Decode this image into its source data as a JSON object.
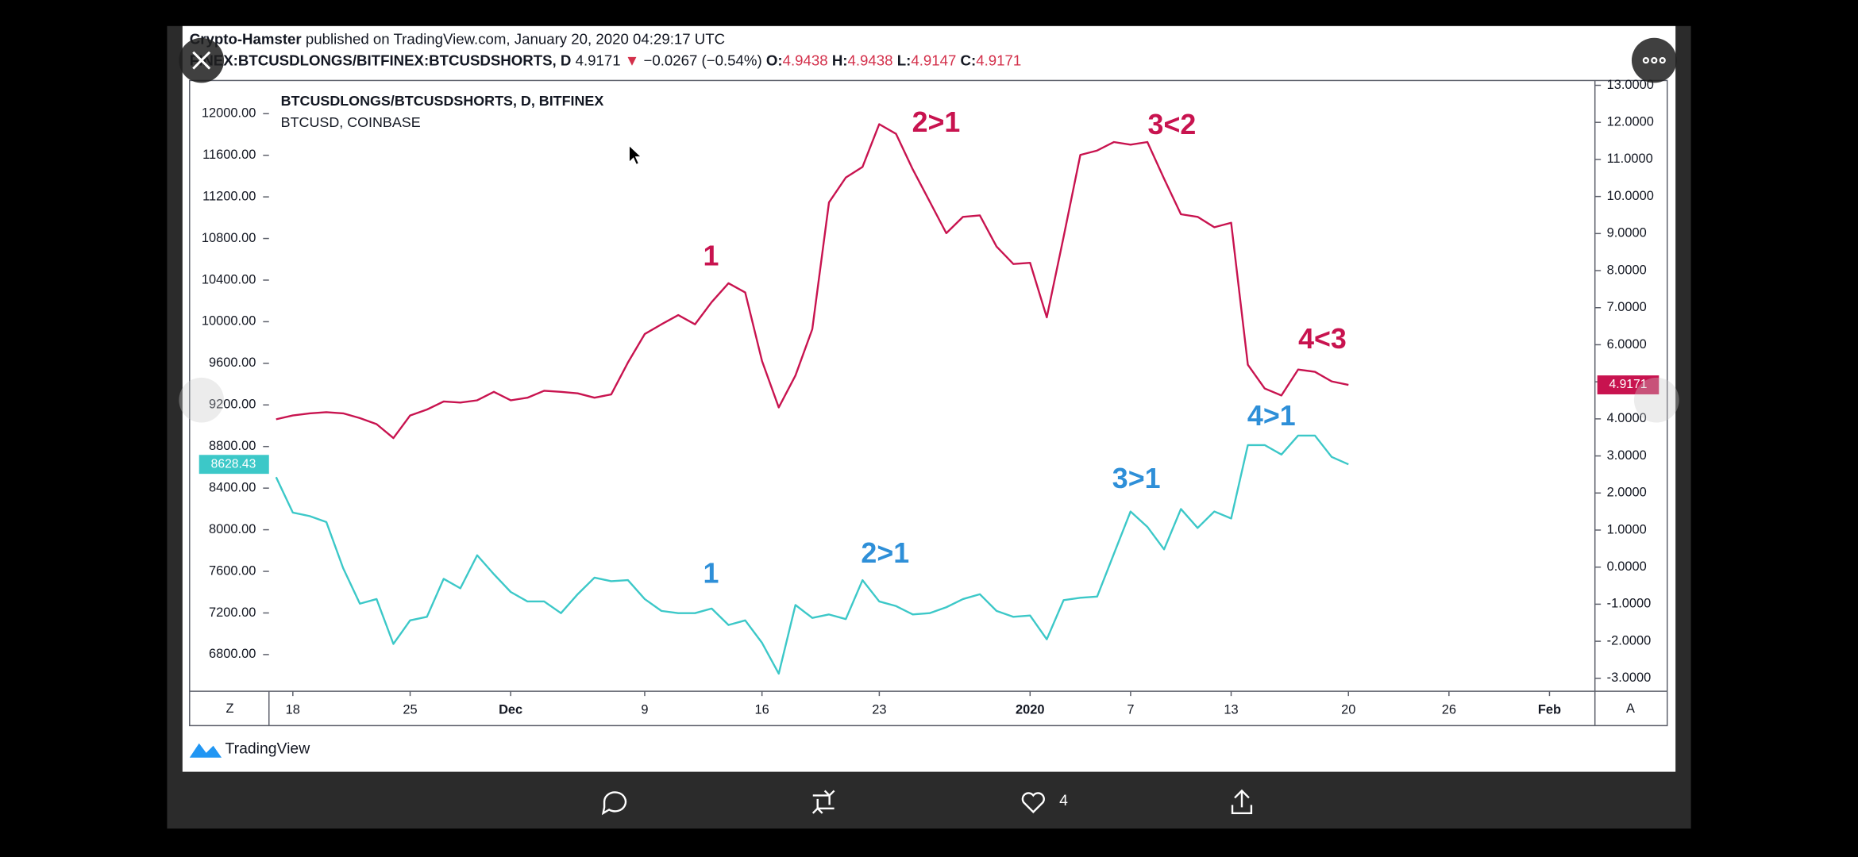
{
  "header": {
    "author": "Crypto-Hamster",
    "published": "published on TradingView.com, January 20, 2020 04:29:17 UTC",
    "symbol": "FINEX:BTCUSDLONGS/BITFINEX:BTCUSDSHORTS, D",
    "last": "4.9171",
    "arrow": "▼",
    "change": "−0.0267 (−0.54%)",
    "ohlc": [
      {
        "label": "O:",
        "value": "4.9438"
      },
      {
        "label": "H:",
        "value": "4.9438"
      },
      {
        "label": "L:",
        "value": "4.9147"
      },
      {
        "label": "C:",
        "value": "4.9171"
      }
    ]
  },
  "controls": {
    "left": "Z",
    "right": "A"
  },
  "chart_data": {
    "type": "line",
    "categories": [
      null,
      "18",
      null,
      null,
      null,
      null,
      null,
      null,
      "25",
      null,
      null,
      null,
      null,
      null,
      "Dec",
      null,
      null,
      null,
      null,
      null,
      null,
      null,
      "9",
      null,
      null,
      null,
      null,
      null,
      null,
      "16",
      null,
      null,
      null,
      null,
      null,
      null,
      "23",
      null,
      null,
      null,
      null,
      null,
      null,
      null,
      null,
      "2020",
      null,
      null,
      null,
      null,
      null,
      "7",
      null,
      null,
      null,
      null,
      null,
      "13",
      null,
      null,
      null,
      null,
      null,
      null,
      "20",
      null,
      null,
      null,
      null,
      null,
      "26",
      null,
      null,
      null,
      null,
      null,
      "Feb",
      null,
      null
    ],
    "series": [
      {
        "name": "BTCUSDLONGS/BTCUSDSHORTS, D, BITFINEX",
        "color": "#c8134f",
        "axis": "y2",
        "values": [
          3.99,
          4.09,
          4.15,
          4.18,
          4.15,
          4.02,
          3.86,
          3.48,
          4.09,
          4.25,
          4.47,
          4.44,
          4.5,
          4.73,
          4.5,
          4.57,
          4.76,
          4.73,
          4.69,
          4.57,
          4.66,
          5.52,
          6.29,
          6.55,
          6.8,
          6.55,
          7.15,
          7.66,
          7.41,
          5.56,
          4.31,
          5.17,
          6.42,
          9.84,
          10.51,
          10.8,
          11.95,
          11.69,
          10.73,
          9.87,
          9.01,
          9.45,
          9.49,
          8.65,
          8.18,
          8.21,
          6.74,
          8.91,
          11.12,
          11.24,
          11.47,
          11.4,
          11.47,
          10.48,
          9.52,
          9.45,
          9.17,
          9.29,
          5.46,
          4.82,
          4.63,
          5.33,
          5.27,
          5.01,
          4.9171,
          null,
          null,
          null,
          null,
          null,
          null,
          null,
          null,
          null,
          null,
          null,
          null,
          null,
          null
        ]
      },
      {
        "name": "BTCUSD, COINBASE",
        "color": "#3cc8c8",
        "values": [
          8506,
          8165,
          8131,
          8074,
          7630,
          7289,
          7334,
          6902,
          7129,
          7163,
          7528,
          7437,
          7755,
          7573,
          7402,
          7311,
          7311,
          7198,
          7380,
          7539,
          7505,
          7516,
          7334,
          7220,
          7198,
          7198,
          7243,
          7084,
          7129,
          6913,
          6617,
          7277,
          7152,
          7186,
          7141,
          7516,
          7311,
          7266,
          7186,
          7198,
          7255,
          7334,
          7380,
          7220,
          7163,
          7175,
          6947,
          7323,
          7346,
          7357,
          7767,
          8176,
          8028,
          7812,
          8199,
          8017,
          8176,
          8108,
          8814,
          8814,
          8723,
          8905,
          8905,
          8700,
          8628.43,
          null,
          null,
          null,
          null,
          null,
          null,
          null,
          null,
          null,
          null,
          null,
          null,
          null,
          null
        ]
      }
    ],
    "ylim": [
      6447,
      12319
    ],
    "yticks": [
      {
        "value": 12000,
        "label": "12000.00"
      },
      {
        "value": 11600,
        "label": "11600.00"
      },
      {
        "value": 11200,
        "label": "11200.00"
      },
      {
        "value": 10800,
        "label": "10800.00"
      },
      {
        "value": 10400,
        "label": "10400.00"
      },
      {
        "value": 10000,
        "label": "10000.00"
      },
      {
        "value": 9600,
        "label": "9600.00"
      },
      {
        "value": 9200,
        "label": "9200.00"
      },
      {
        "value": 8800,
        "label": "8800.00"
      },
      {
        "value": 8400,
        "label": "8400.00"
      },
      {
        "value": 8000,
        "label": "8000.00"
      },
      {
        "value": 7600,
        "label": "7600.00"
      },
      {
        "value": 7200,
        "label": "7200.00"
      },
      {
        "value": 6800,
        "label": "6800.00"
      }
    ],
    "y2lim": [
      -3.35,
      13.13
    ],
    "y2ticks": [
      {
        "value": 13,
        "label": "13.0000"
      },
      {
        "value": 12,
        "label": "12.0000"
      },
      {
        "value": 11,
        "label": "11.0000"
      },
      {
        "value": 10,
        "label": "10.0000"
      },
      {
        "value": 9,
        "label": "9.0000"
      },
      {
        "value": 8,
        "label": "8.0000"
      },
      {
        "value": 7,
        "label": "7.0000"
      },
      {
        "value": 6,
        "label": "6.0000"
      },
      {
        "value": 5,
        "label": "5.0000"
      },
      {
        "value": 4,
        "label": "4.0000"
      },
      {
        "value": 3,
        "label": "3.0000"
      },
      {
        "value": 2,
        "label": "2.0000"
      },
      {
        "value": 1,
        "label": "1.0000"
      },
      {
        "value": 0,
        "label": "0.0000"
      },
      {
        "value": -1,
        "label": "-1.0000"
      },
      {
        "value": -2,
        "label": "-2.0000"
      },
      {
        "value": -3,
        "label": "-3.0000"
      }
    ],
    "grid": false,
    "annotations": [
      {
        "text": "1",
        "color": "#c8134f"
      },
      {
        "text": "2>1",
        "color": "#c8134f"
      },
      {
        "text": "3<2",
        "color": "#c8134f"
      },
      {
        "text": "4<3",
        "color": "#c8134f"
      },
      {
        "text": "1",
        "color": "#2e8fd8"
      },
      {
        "text": "2>1",
        "color": "#2e8fd8"
      },
      {
        "text": "3>1",
        "color": "#2e8fd8"
      },
      {
        "text": "4>1",
        "color": "#2e8fd8"
      }
    ]
  },
  "footer": {
    "brand": "TradingView",
    "likes": "4"
  }
}
